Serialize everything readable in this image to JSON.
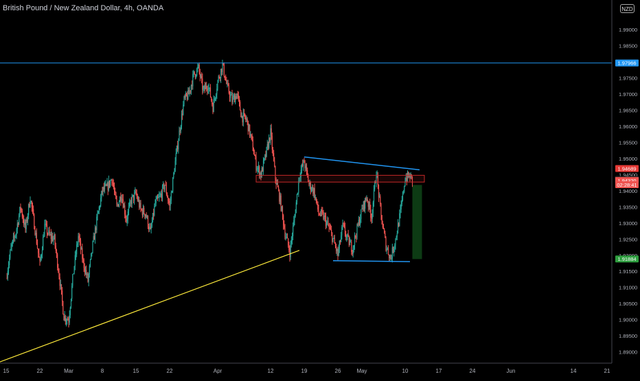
{
  "header": {
    "symbol_title": "British Pound / New Zealand Dollar, 4h, OANDA",
    "currency_badge": "NZD"
  },
  "chart_data": {
    "type": "candlestick",
    "title": "British Pound / New Zealand Dollar, 4h, OANDA",
    "ylim": [
      1.8865,
      1.9992
    ],
    "y_ticks": [
      1.99,
      1.985,
      1.98,
      1.975,
      1.97,
      1.965,
      1.96,
      1.955,
      1.95,
      1.945,
      1.94,
      1.935,
      1.93,
      1.925,
      1.92,
      1.915,
      1.91,
      1.905,
      1.9,
      1.895,
      1.89
    ],
    "y_tick_labels": [
      "1.99000",
      "1.98500",
      "1.98000",
      "1.97500",
      "1.97000",
      "1.96500",
      "1.96000",
      "1.95500",
      "1.95000",
      "1.94500",
      "1.94000",
      "1.93500",
      "1.93000",
      "1.92500",
      "1.92000",
      "1.91500",
      "1.91000",
      "1.90500",
      "1.90000",
      "1.89500",
      "1.89000"
    ],
    "x_ticks": [
      {
        "label": "15",
        "t": 0
      },
      {
        "label": "22",
        "t": 7
      },
      {
        "label": "Mar",
        "t": 13
      },
      {
        "label": "8",
        "t": 20
      },
      {
        "label": "15",
        "t": 27
      },
      {
        "label": "22",
        "t": 34
      },
      {
        "label": "Apr",
        "t": 44
      },
      {
        "label": "12",
        "t": 55
      },
      {
        "label": "19",
        "t": 62
      },
      {
        "label": "26",
        "t": 69
      },
      {
        "label": "May",
        "t": 74
      },
      {
        "label": "10",
        "t": 83
      },
      {
        "label": "17",
        "t": 90
      },
      {
        "label": "24",
        "t": 97
      },
      {
        "label": "Jun",
        "t": 105
      },
      {
        "label": "14",
        "t": 118
      },
      {
        "label": "21",
        "t": 125
      }
    ],
    "last_t": 84.5,
    "price_path": [
      [
        0,
        1.913
      ],
      [
        1,
        1.922
      ],
      [
        2,
        1.927
      ],
      [
        3,
        1.935
      ],
      [
        4,
        1.928
      ],
      [
        5,
        1.938
      ],
      [
        6,
        1.928
      ],
      [
        7,
        1.917
      ],
      [
        8,
        1.929
      ],
      [
        9,
        1.926
      ],
      [
        10,
        1.925
      ],
      [
        11,
        1.914
      ],
      [
        12,
        1.901
      ],
      [
        13,
        1.9
      ],
      [
        14,
        1.915
      ],
      [
        15,
        1.926
      ],
      [
        16,
        1.918
      ],
      [
        17,
        1.912
      ],
      [
        18,
        1.923
      ],
      [
        19,
        1.932
      ],
      [
        20,
        1.94
      ],
      [
        21,
        1.941
      ],
      [
        22,
        1.944
      ],
      [
        23,
        1.935
      ],
      [
        24,
        1.939
      ],
      [
        25,
        1.931
      ],
      [
        26,
        1.937
      ],
      [
        27,
        1.939
      ],
      [
        28,
        1.934
      ],
      [
        29,
        1.933
      ],
      [
        30,
        1.927
      ],
      [
        31,
        1.936
      ],
      [
        32,
        1.938
      ],
      [
        33,
        1.942
      ],
      [
        34,
        1.935
      ],
      [
        35,
        1.947
      ],
      [
        36,
        1.958
      ],
      [
        37,
        1.968
      ],
      [
        38,
        1.97
      ],
      [
        39,
        1.976
      ],
      [
        40,
        1.978
      ],
      [
        41,
        1.971
      ],
      [
        42,
        1.973
      ],
      [
        43,
        1.966
      ],
      [
        44,
        1.974
      ],
      [
        45,
        1.979
      ],
      [
        46,
        1.972
      ],
      [
        47,
        1.968
      ],
      [
        48,
        1.97
      ],
      [
        49,
        1.963
      ],
      [
        50,
        1.962
      ],
      [
        51,
        1.956
      ],
      [
        52,
        1.948
      ],
      [
        53,
        1.945
      ],
      [
        54,
        1.951
      ],
      [
        55,
        1.958
      ],
      [
        56,
        1.944
      ],
      [
        57,
        1.937
      ],
      [
        58,
        1.927
      ],
      [
        59,
        1.921
      ],
      [
        60,
        1.932
      ],
      [
        61,
        1.945
      ],
      [
        62,
        1.949
      ],
      [
        63,
        1.942
      ],
      [
        64,
        1.94
      ],
      [
        65,
        1.933
      ],
      [
        66,
        1.932
      ],
      [
        67,
        1.929
      ],
      [
        68,
        1.925
      ],
      [
        69,
        1.92
      ],
      [
        70,
        1.929
      ],
      [
        71,
        1.925
      ],
      [
        72,
        1.922
      ],
      [
        73,
        1.928
      ],
      [
        74,
        1.934
      ],
      [
        75,
        1.938
      ],
      [
        76,
        1.932
      ],
      [
        77,
        1.946
      ],
      [
        78,
        1.932
      ],
      [
        79,
        1.923
      ],
      [
        80,
        1.919
      ],
      [
        81,
        1.925
      ],
      [
        82,
        1.933
      ],
      [
        83,
        1.944
      ],
      [
        84,
        1.9445
      ],
      [
        84.5,
        1.9432
      ]
    ],
    "drawings": {
      "horizontal_line": {
        "price": 1.97966,
        "color": "#2196f3"
      },
      "trendline": {
        "from": [
          -2,
          1.8865
        ],
        "to": [
          61,
          1.9215
        ],
        "color": "#ffeb3b"
      },
      "triangle_upper": {
        "from": [
          62,
          1.9505
        ],
        "to": [
          86,
          1.9465
        ],
        "color": "#2196f3"
      },
      "triangle_lower": {
        "from": [
          68,
          1.9183
        ],
        "to": [
          84,
          1.918
        ],
        "color": "#2196f3"
      },
      "resistance_zone": {
        "t_from": 52,
        "t_to": 87,
        "p_from": 1.9427,
        "p_to": 1.9448,
        "color": "#c62828"
      },
      "long_target_box": {
        "t_from": 84.5,
        "t_to": 86.5,
        "p_from": 1.9188,
        "p_to": 1.9418,
        "color": "#0d3b14"
      }
    },
    "price_labels": [
      {
        "text": "1.97966",
        "price": 1.97966,
        "color": "#2196f3"
      },
      {
        "text": "1.94689",
        "price": 1.94689,
        "color": "#e53935"
      },
      {
        "text": "1.94339",
        "price": 1.9434,
        "color": "#000000"
      },
      {
        "text": "1.94320",
        "price": 1.9432,
        "color": "#ef5350"
      },
      {
        "text": "02:28:41",
        "price": 1.9419,
        "color": "#ef5350"
      },
      {
        "text": "1.91884",
        "price": 1.91884,
        "color": "#2e9e3f"
      }
    ],
    "colors": {
      "up": "#26a69a",
      "down": "#ef5350",
      "grid": "#000000",
      "axis_text": "#b2b5be"
    }
  }
}
